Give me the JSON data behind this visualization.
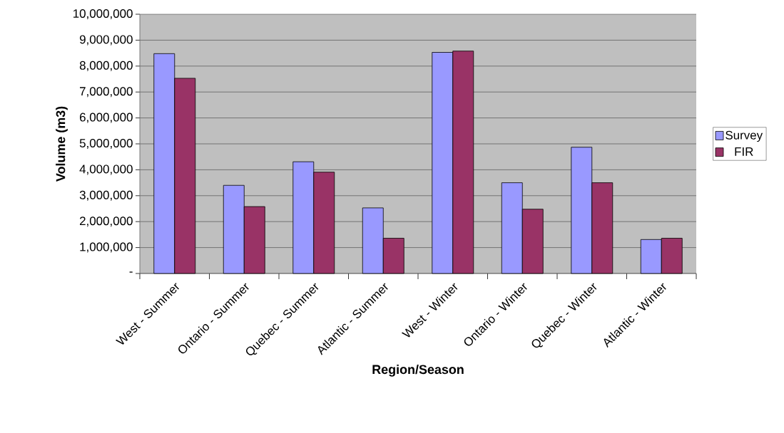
{
  "chart_data": {
    "type": "bar",
    "xlabel": "Region/Season",
    "ylabel": "Volume (m3)",
    "categories": [
      "West - Summer",
      "Ontario - Summer",
      "Quebec - Summer",
      "Atlantic - Summer",
      "West - Winter",
      "Ontario - Winter",
      "Quebec - Winter",
      "Atlantic - Winter"
    ],
    "series": [
      {
        "name": "Survey",
        "color": "#9999ff",
        "values": [
          8480000,
          3400000,
          4310000,
          2530000,
          8530000,
          3500000,
          4870000,
          1310000
        ]
      },
      {
        "name": "FIR",
        "color": "#993366",
        "values": [
          7530000,
          2580000,
          3910000,
          1360000,
          8580000,
          2480000,
          3500000,
          1360000
        ]
      }
    ],
    "ylim": [
      0,
      10000000
    ],
    "yticks": [
      {
        "value": 0,
        "label": "-"
      },
      {
        "value": 1000000,
        "label": "1,000,000"
      },
      {
        "value": 2000000,
        "label": "2,000,000"
      },
      {
        "value": 3000000,
        "label": "3,000,000"
      },
      {
        "value": 4000000,
        "label": "4,000,000"
      },
      {
        "value": 5000000,
        "label": "5,000,000"
      },
      {
        "value": 6000000,
        "label": "6,000,000"
      },
      {
        "value": 7000000,
        "label": "7,000,000"
      },
      {
        "value": 8000000,
        "label": "8,000,000"
      },
      {
        "value": 9000000,
        "label": "9,000,000"
      },
      {
        "value": 10000000,
        "label": "10,000,000"
      }
    ],
    "grid": "y",
    "legend": "right"
  }
}
